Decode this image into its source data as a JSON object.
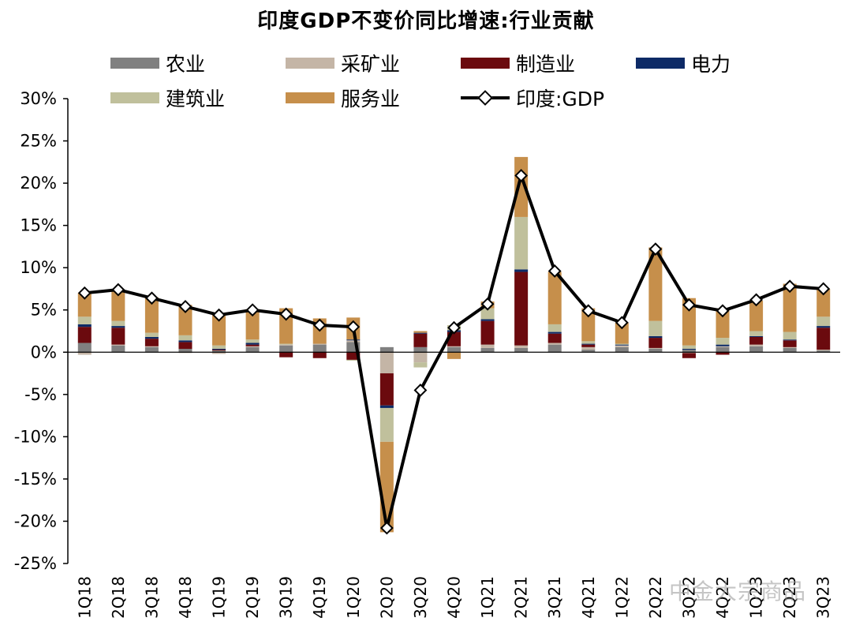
{
  "chart_data": {
    "type": "bar",
    "title": "印度GDP不变价同比增速:行业贡献",
    "ylim": [
      -25,
      30
    ],
    "y_ticks": [
      "30%",
      "25%",
      "20%",
      "15%",
      "10%",
      "5%",
      "0%",
      "-5%",
      "-10%",
      "-15%",
      "-20%",
      "-25%"
    ],
    "y_tick_values": [
      30,
      25,
      20,
      15,
      10,
      5,
      0,
      -5,
      -10,
      -15,
      -20,
      -25
    ],
    "stacked": true,
    "legend_position": "top",
    "categories": [
      "1Q18",
      "2Q18",
      "3Q18",
      "4Q18",
      "1Q19",
      "2Q19",
      "3Q19",
      "4Q19",
      "1Q20",
      "2Q20",
      "3Q20",
      "4Q20",
      "1Q21",
      "2Q21",
      "3Q21",
      "4Q21",
      "1Q22",
      "2Q22",
      "3Q22",
      "4Q22",
      "1Q23",
      "2Q23",
      "3Q23"
    ],
    "series": [
      {
        "name": "农业",
        "color": "#808080",
        "values": [
          1.1,
          0.8,
          0.6,
          0.4,
          0.2,
          0.6,
          0.8,
          0.9,
          1.2,
          0.6,
          0.6,
          0.6,
          0.5,
          0.5,
          0.9,
          0.3,
          0.6,
          0.4,
          0.3,
          0.6,
          0.7,
          0.5,
          0.2
        ]
      },
      {
        "name": "采矿业",
        "color": "#c4b5a6",
        "values": [
          -0.3,
          0.1,
          0.1,
          -0.1,
          -0.2,
          0.1,
          0.1,
          0.1,
          0.2,
          -2.5,
          -1.2,
          0.1,
          0.4,
          0.3,
          0.2,
          0.3,
          0.2,
          0.1,
          -0.1,
          0.1,
          0.2,
          0.1,
          0.1
        ]
      },
      {
        "name": "制造业",
        "color": "#6b0a0e",
        "values": [
          1.9,
          2.0,
          0.9,
          0.8,
          0.1,
          0.2,
          -0.6,
          -0.7,
          -0.9,
          -3.8,
          1.6,
          1.7,
          2.8,
          8.7,
          1.1,
          0.3,
          0.0,
          1.2,
          -0.6,
          -0.3,
          0.9,
          0.8,
          2.6
        ]
      },
      {
        "name": "电力",
        "color": "#0d2a66",
        "values": [
          0.3,
          0.2,
          0.2,
          0.2,
          0.1,
          0.2,
          0.0,
          0.0,
          0.1,
          -0.3,
          0.1,
          0.2,
          0.2,
          0.3,
          0.2,
          0.1,
          0.1,
          0.2,
          0.1,
          0.2,
          0.1,
          0.1,
          0.2
        ]
      },
      {
        "name": "建筑业",
        "color": "#c0c09c",
        "values": [
          0.9,
          0.6,
          0.5,
          0.6,
          0.4,
          0.4,
          0.1,
          0.0,
          -0.1,
          -4.0,
          -0.6,
          0.6,
          1.3,
          6.2,
          0.9,
          0.3,
          0.1,
          1.8,
          0.4,
          0.8,
          0.6,
          0.9,
          1.1
        ]
      },
      {
        "name": "服务业",
        "color": "#c68f4b",
        "values": [
          2.8,
          3.5,
          4.2,
          3.6,
          3.7,
          3.6,
          4.2,
          3.0,
          2.6,
          -10.7,
          0.2,
          -0.8,
          0.8,
          7.1,
          6.2,
          3.9,
          2.5,
          8.7,
          5.6,
          3.5,
          3.6,
          5.7,
          3.3
        ]
      }
    ],
    "line": {
      "name": "印度:GDP",
      "color": "#000000",
      "values": [
        7.0,
        7.4,
        6.4,
        5.4,
        4.4,
        5.0,
        4.5,
        3.2,
        3.0,
        -20.8,
        -4.5,
        2.9,
        5.7,
        20.9,
        9.6,
        4.9,
        3.5,
        12.2,
        5.6,
        4.9,
        6.2,
        7.8,
        7.5
      ]
    }
  },
  "watermark": "中金大宗商品"
}
